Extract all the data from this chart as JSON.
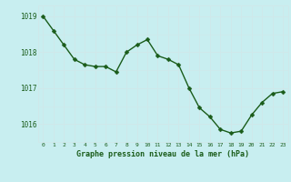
{
  "x": [
    0,
    1,
    2,
    3,
    4,
    5,
    6,
    7,
    8,
    9,
    10,
    11,
    12,
    13,
    14,
    15,
    16,
    17,
    18,
    19,
    20,
    21,
    22,
    23
  ],
  "y": [
    1019.0,
    1018.6,
    1018.2,
    1017.8,
    1017.65,
    1017.6,
    1017.6,
    1017.45,
    1018.0,
    1018.2,
    1018.35,
    1017.9,
    1017.8,
    1017.65,
    1017.0,
    1016.45,
    1016.2,
    1015.85,
    1015.75,
    1015.8,
    1016.25,
    1016.6,
    1016.85,
    1016.9
  ],
  "line_color": "#1a5c1a",
  "marker_color": "#1a5c1a",
  "bg_color": "#c8eef0",
  "grid_color": "#d0e8ea",
  "axis_label_color": "#1a5c1a",
  "tick_label_color": "#1a5c1a",
  "xlabel": "Graphe pression niveau de la mer (hPa)",
  "ylim": [
    1015.5,
    1019.3
  ],
  "yticks": [
    1016,
    1017,
    1018,
    1019
  ],
  "xticks": [
    0,
    1,
    2,
    3,
    4,
    5,
    6,
    7,
    8,
    9,
    10,
    11,
    12,
    13,
    14,
    15,
    16,
    17,
    18,
    19,
    20,
    21,
    22,
    23
  ],
  "marker_size": 2.5,
  "line_width": 1.0
}
